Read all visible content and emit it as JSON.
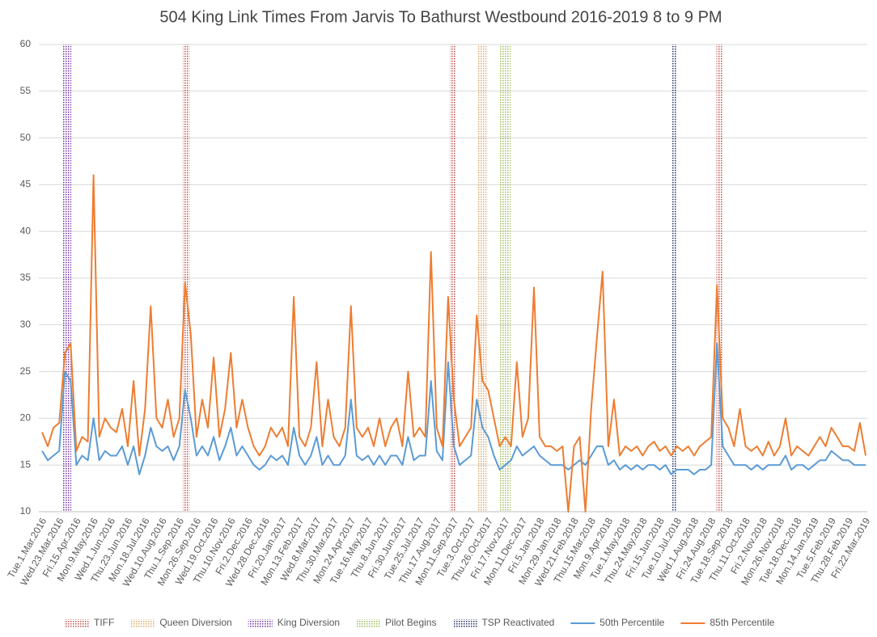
{
  "chart_data": {
    "type": "line",
    "title": "504 King Link Times From Jarvis To Bathurst Westbound 2016-2019 8 to 9 PM",
    "categories": [
      "Tue.1.Mar.2016",
      null,
      null,
      "Wed.23.Mar.2016",
      null,
      null,
      "Fri.15.Apr.2016",
      null,
      null,
      "Mon.9.May.2016",
      null,
      null,
      "Wed.1.Jun.2016",
      null,
      null,
      "Thu.23.Jun.2016",
      null,
      null,
      "Mon.18.Jul.2016",
      null,
      null,
      "Wed.10.Aug.2016",
      null,
      null,
      "Thu.1.Sep.2016",
      null,
      null,
      "Mon.26.Sep.2016",
      null,
      null,
      "Wed.19.Oct.2016",
      null,
      null,
      "Thu.10.Nov.2016",
      null,
      null,
      "Fri.2.Dec.2016",
      null,
      null,
      "Wed.28.Dec.2016",
      null,
      null,
      "Fri.20.Jan.2017",
      null,
      null,
      "Mon.13.Feb.2017",
      null,
      null,
      "Wed.8.Mar.2017",
      null,
      null,
      "Thu.30.Mar.2017",
      null,
      null,
      "Mon.24.Apr.2017",
      null,
      null,
      "Tue.16.May.2017",
      null,
      null,
      "Thu.8.Jun.2017",
      null,
      null,
      "Fri.30.Jun.2017",
      null,
      null,
      "Tue.25.Jul.2017",
      null,
      null,
      "Thu.17.Aug.2017",
      null,
      null,
      "Mon.11.Sep.2017",
      null,
      null,
      "Tue.3.Oct.2017",
      null,
      null,
      "Thu.26.Oct.2017",
      null,
      null,
      "Fri.17.Nov.2017",
      null,
      null,
      "Mon.11.Dec.2017",
      null,
      null,
      "Fri.5.Jan.2018",
      null,
      null,
      "Mon.29.Jan.2018",
      null,
      null,
      "Wed.21.Feb.2018",
      null,
      null,
      "Thu.15.Mar.2018",
      null,
      null,
      "Mon.9.Apr.2018",
      null,
      null,
      "Tue.1.May.2018",
      null,
      null,
      "Thu.24.May.2018",
      null,
      null,
      "Fri.15.Jun.2018",
      null,
      null,
      "Tue.10.Jul.2018",
      null,
      null,
      "Wed.1.Aug.2018",
      null,
      null,
      "Fri.24.Aug.2018",
      null,
      null,
      "Tue.18.Sep.2018",
      null,
      null,
      "Thu.11.Oct.2018",
      null,
      null,
      "Fri.2.Nov.2018",
      null,
      null,
      "Mon.26.Nov.2018",
      null,
      null,
      "Tue.18.Dec.2018",
      null,
      null,
      "Mon.14.Jan.2019",
      null,
      null,
      "Tue.5.Feb.2019",
      null,
      null,
      "Thu.28.Feb.2019",
      null,
      null,
      "Fri.22.Mar.2019"
    ],
    "markers": [
      {
        "name": "TIFF",
        "color": "#c0504d",
        "ranges": [
          [
            24.6,
            25.8
          ],
          [
            71.3,
            72.3
          ],
          [
            117.9,
            118.9
          ]
        ]
      },
      {
        "name": "Queen Diversion",
        "color": "#d9a86c",
        "ranges": [
          [
            76.1,
            77.7
          ]
        ]
      },
      {
        "name": "King Diversion",
        "color": "#7030a0",
        "ranges": [
          [
            3.5,
            5.1
          ]
        ]
      },
      {
        "name": "Pilot Begins",
        "color": "#9bbb59",
        "ranges": [
          [
            80,
            81.9
          ]
        ]
      },
      {
        "name": "TSP Reactivated",
        "color": "#1f2f5f",
        "ranges": [
          [
            110.2,
            111
          ]
        ]
      }
    ],
    "series": [
      {
        "name": "50th Percentile",
        "color": "#5b9bd5",
        "values": [
          16.5,
          15.5,
          16,
          16.5,
          25,
          24,
          15,
          16,
          15.5,
          20,
          15.5,
          16.5,
          16,
          16,
          17,
          15,
          17,
          14,
          16,
          19,
          17,
          16.5,
          17,
          15.5,
          17,
          23,
          20,
          16,
          17,
          16,
          18,
          15.5,
          17,
          19,
          16,
          17,
          16,
          15,
          14.5,
          15,
          16,
          15.5,
          16,
          15,
          19,
          16,
          15,
          16,
          18,
          15,
          16,
          15,
          15,
          16,
          22,
          16,
          15.5,
          16,
          15,
          16,
          15,
          16,
          16,
          15,
          18,
          15.5,
          16,
          16,
          24,
          16.5,
          15.5,
          26,
          17,
          15,
          15.5,
          16,
          22,
          19,
          18,
          16,
          14.5,
          15,
          15.5,
          17,
          16,
          16.5,
          17,
          16,
          15.5,
          15,
          15,
          15,
          14.5,
          15,
          15.5,
          15,
          16,
          17,
          17,
          15,
          15.5,
          14.5,
          15,
          14.5,
          15,
          14.5,
          15,
          15,
          14.5,
          15,
          14,
          14.5,
          14.5,
          14.5,
          14,
          14.5,
          14.5,
          15,
          28,
          17,
          16,
          15,
          15,
          15,
          14.5,
          15,
          14.5,
          15,
          15,
          15,
          16,
          14.5,
          15,
          15,
          14.5,
          15,
          15.5,
          15.5,
          16.5,
          16,
          15.5,
          15.5,
          15,
          15,
          15
        ]
      },
      {
        "name": "85th Percentile",
        "color": "#ed7d31",
        "values": [
          18.5,
          17,
          19,
          19.5,
          27,
          28,
          16.5,
          18,
          17.5,
          46,
          18,
          20,
          19,
          18.5,
          21,
          17,
          24,
          16,
          21,
          32,
          20,
          19,
          22,
          18,
          20,
          34.5,
          29,
          18,
          22,
          19,
          26.5,
          18,
          21,
          27,
          19,
          22,
          19,
          17,
          16,
          17,
          19,
          18,
          19,
          17,
          33,
          18,
          17,
          19,
          26,
          17,
          22,
          18,
          17,
          19,
          32,
          19,
          18,
          19,
          17,
          20,
          17,
          19,
          20,
          17,
          25,
          18,
          19,
          18,
          37.8,
          19,
          17,
          33,
          22,
          17,
          18,
          19,
          31,
          24,
          23,
          20,
          17,
          18,
          17,
          26,
          18,
          20,
          34,
          18,
          17,
          17,
          16.5,
          17,
          10,
          17,
          18,
          10,
          21,
          28.5,
          35.7,
          17,
          22,
          16,
          17,
          16.5,
          17,
          16,
          17,
          17.5,
          16.5,
          17,
          16,
          17,
          16.5,
          17,
          16,
          17,
          17.5,
          18,
          34.2,
          20,
          19,
          17,
          21,
          17,
          16.5,
          17,
          16,
          17.5,
          16,
          17,
          20,
          16,
          17,
          16.5,
          16,
          17,
          18,
          17,
          19,
          18,
          17,
          17,
          16.5,
          19.5,
          16
        ]
      }
    ],
    "ylim": [
      10,
      60
    ],
    "yticks": [
      10,
      15,
      20,
      25,
      30,
      35,
      40,
      45,
      50,
      55,
      60
    ],
    "grid": true
  }
}
